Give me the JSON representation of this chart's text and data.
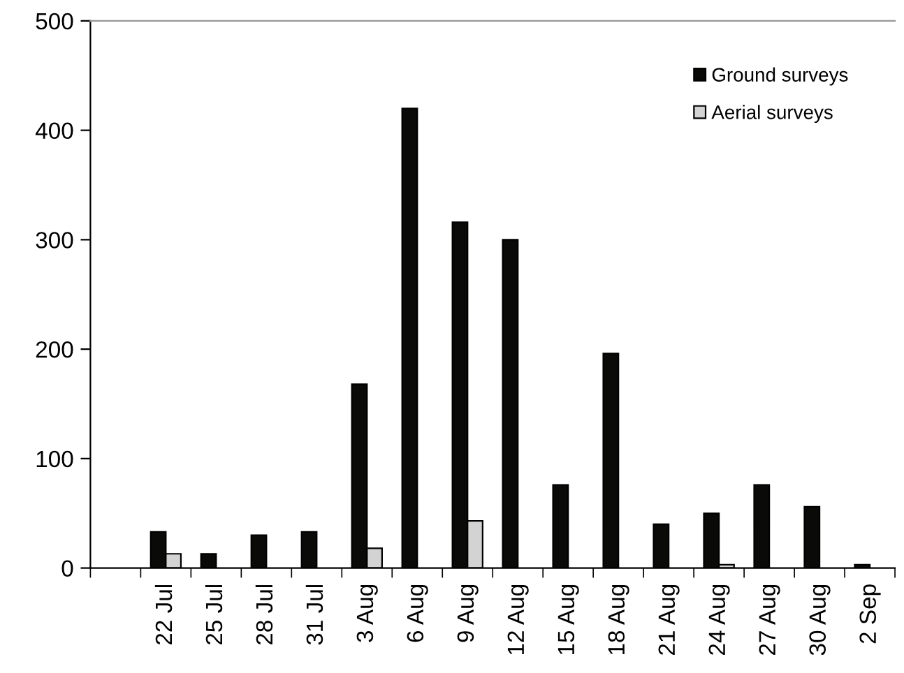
{
  "chart_data": {
    "type": "bar",
    "categories": [
      null,
      "22 Jul",
      "25 Jul",
      "28 Jul",
      "31 Jul",
      "3 Aug",
      "6 Aug",
      "9 Aug",
      "12 Aug",
      "15 Aug",
      "18 Aug",
      "21 Aug",
      "24 Aug",
      "27 Aug",
      "30 Aug",
      "2 Sep"
    ],
    "series": [
      {
        "name": "Ground surveys",
        "color": "#0a0a08",
        "values": [
          null,
          33,
          13,
          30,
          33,
          168,
          420,
          316,
          300,
          76,
          196,
          40,
          50,
          76,
          56,
          3
        ]
      },
      {
        "name": "Aerial surveys",
        "color": "#d3d3d3",
        "values": [
          null,
          13,
          null,
          null,
          null,
          18,
          null,
          43,
          null,
          null,
          null,
          null,
          3,
          null,
          null,
          null
        ]
      }
    ],
    "ylim": [
      0,
      500
    ],
    "yticks": [
      0,
      100,
      200,
      300,
      400,
      500
    ],
    "grid": false,
    "legend": "top right"
  }
}
